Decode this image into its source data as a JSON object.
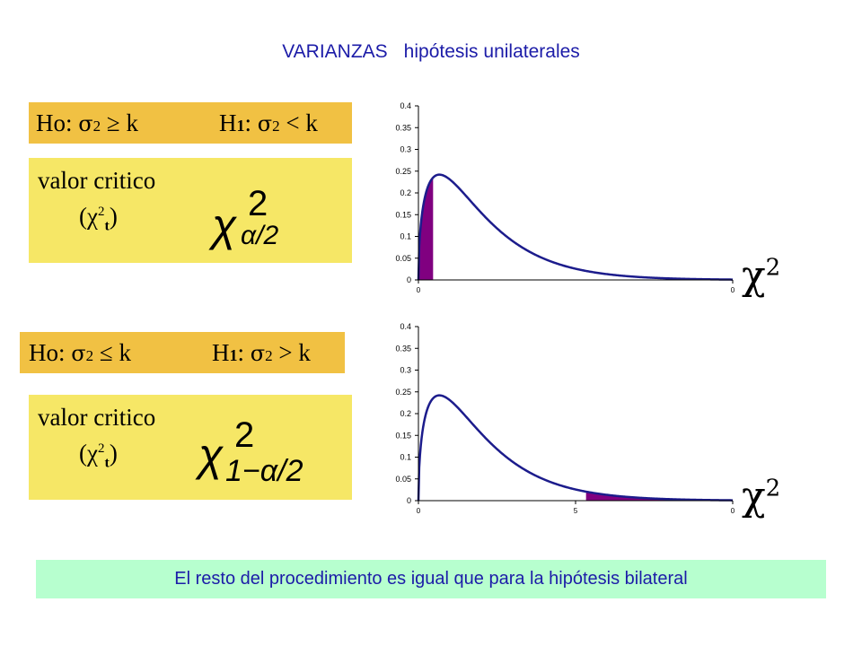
{
  "title": {
    "part1": "VARIANZAS",
    "part2": "hipótesis unilaterales"
  },
  "case1": {
    "h0_prefix": "Ho:",
    "h0_sym": "σ",
    "h0_exp": "2",
    "h0_rel": "≥ k",
    "h1_prefix": "H",
    "h1_sub": "1",
    "h1_colon": ":",
    "h1_sym": "σ",
    "h1_exp": "2",
    "h1_rel": "< k",
    "crit_label": "valor critico",
    "crit_sym": "(χ",
    "crit_sym_exp": "2",
    "crit_sym_sub": "t",
    "crit_sym_close": ")",
    "formula_chi": "χ",
    "formula_exp": "2",
    "formula_sub": "α/2",
    "axis_label": "χ",
    "axis_label_exp": "2"
  },
  "case2": {
    "h0_prefix": "Ho:",
    "h0_sym": "σ",
    "h0_exp": "2",
    "h0_rel": "≤ k",
    "h1_prefix": "H",
    "h1_sub": "1",
    "h1_colon": ":",
    "h1_sym": "σ",
    "h1_exp": "2",
    "h1_rel": "> k",
    "crit_label": "valor critico",
    "crit_sym": "(χ",
    "crit_sym_exp": "2",
    "crit_sym_sub": "t",
    "crit_sym_close": ")",
    "formula_chi": "χ",
    "formula_exp": "2",
    "formula_sub": "1−α/2",
    "axis_label": "χ",
    "axis_label_exp": "2"
  },
  "bottom_note": "El resto del procedimiento es igual que para  la hipótesis bilateral",
  "chart_data": [
    {
      "type": "area",
      "x_range": [
        0,
        15
      ],
      "ylim": [
        0,
        0.4
      ],
      "y_ticks": [
        "0",
        "0.05",
        "0.1",
        "0.15",
        "0.2",
        "0.25",
        "0.3",
        "0.35",
        "0.4"
      ],
      "x_ticks": [
        "0",
        "0"
      ],
      "shaded_tail": "left",
      "shaded_range": [
        0,
        0.7
      ],
      "colors": {
        "curve": "#1c1c8c",
        "shade": "#800080"
      }
    },
    {
      "type": "area",
      "x_range": [
        0,
        15
      ],
      "ylim": [
        0,
        0.4
      ],
      "y_ticks": [
        "0",
        "0.05",
        "0.1",
        "0.15",
        "0.2",
        "0.25",
        "0.3",
        "0.35",
        "0.4"
      ],
      "x_ticks": [
        "0",
        "5",
        "0"
      ],
      "shaded_tail": "right",
      "shaded_range": [
        8,
        15
      ],
      "colors": {
        "curve": "#1c1c8c",
        "shade": "#800080"
      }
    }
  ]
}
